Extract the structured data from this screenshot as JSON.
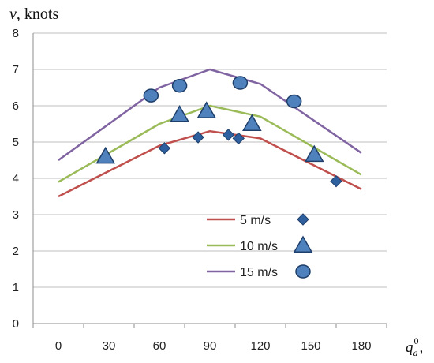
{
  "chart_data": {
    "type": "line",
    "title": "",
    "ylabel": {
      "var": "v",
      "unit": ", knots"
    },
    "xlabel": {
      "var": "q",
      "sup": "0",
      "sub": "a",
      "suffix": ","
    },
    "ylim": [
      0,
      8
    ],
    "yticks": [
      0,
      1,
      2,
      3,
      4,
      5,
      6,
      7,
      8
    ],
    "xlim": [
      -15,
      195
    ],
    "xticks": [
      0,
      30,
      60,
      90,
      120,
      150,
      180
    ],
    "grid": "horizontal",
    "legend_position": "lower-center",
    "series": [
      {
        "name": "5 m/s",
        "color": "#c0504d",
        "marker": "diamond",
        "marker_color": "#2e5f9e",
        "line": {
          "x": [
            0,
            60,
            90,
            120,
            180
          ],
          "y": [
            3.5,
            4.9,
            5.3,
            5.1,
            3.7
          ]
        },
        "points": {
          "x": [
            63,
            83,
            101,
            107,
            165
          ],
          "y": [
            4.83,
            5.13,
            5.2,
            5.1,
            3.92
          ]
        }
      },
      {
        "name": "10 m/s",
        "color": "#9bbb59",
        "marker": "triangle",
        "marker_color": "#4f81bd",
        "line": {
          "x": [
            0,
            60,
            90,
            120,
            180
          ],
          "y": [
            3.9,
            5.5,
            6.0,
            5.7,
            4.1
          ]
        },
        "points": {
          "x": [
            28,
            72,
            88,
            115,
            152
          ],
          "y": [
            4.6,
            5.75,
            5.85,
            5.5,
            4.65
          ]
        }
      },
      {
        "name": "15 m/s",
        "color": "#8064a2",
        "marker": "circle",
        "marker_color": "#4f81bd",
        "line": {
          "x": [
            0,
            60,
            90,
            120,
            180
          ],
          "y": [
            4.5,
            6.5,
            7.0,
            6.6,
            4.7
          ]
        },
        "points": {
          "x": [
            55,
            72,
            108,
            140
          ],
          "y": [
            6.28,
            6.55,
            6.63,
            6.12
          ]
        }
      }
    ]
  }
}
